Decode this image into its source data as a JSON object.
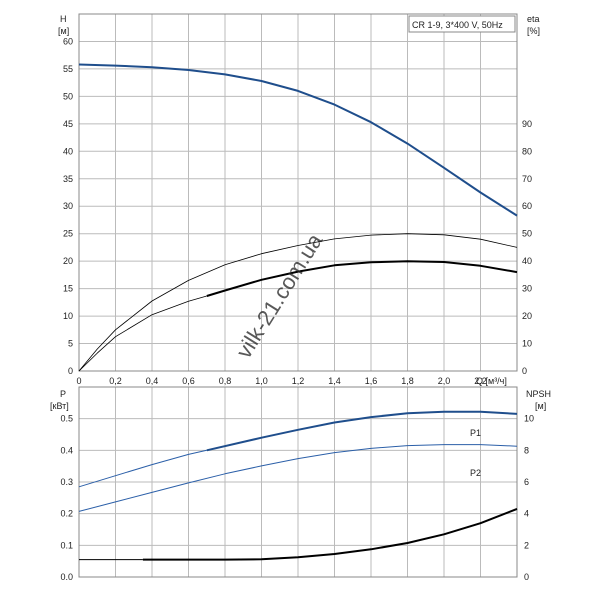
{
  "watermark": "vilk-21.com.ua",
  "colors": {
    "grid": "#bbbbbb",
    "frame": "#888888",
    "head": "#1f4e8c",
    "p1": "#1f4e8c",
    "p2": "#2b5fa8",
    "efficiency": "#000000",
    "npsh": "#000000"
  },
  "chart_data": [
    {
      "type": "line",
      "title": "CR 1-9, 3*400 V, 50Hz",
      "xlabel": "Q [м³/ч]",
      "ylabel_left": "H\n[м]",
      "ylabel_right": "eta\n[%]",
      "xlim": [
        0,
        2.4
      ],
      "ylim": [
        0,
        65
      ],
      "ylim_right": [
        0,
        130
      ],
      "grid": true,
      "x_ticks": [
        "0",
        "0,2",
        "0,4",
        "0,6",
        "0,8",
        "1,0",
        "1,2",
        "1,4",
        "1,6",
        "1,8",
        "2,0",
        "2,2"
      ],
      "y_ticks": [
        "0",
        "5",
        "10",
        "15",
        "20",
        "25",
        "30",
        "35",
        "40",
        "45",
        "50",
        "55",
        "60"
      ],
      "y_ticks_right": [
        "0",
        "10",
        "20",
        "30",
        "40",
        "50",
        "60",
        "70",
        "80",
        "90"
      ],
      "series": [
        {
          "axis": "left",
          "style": "head",
          "x": [
            0,
            0.2,
            0.4,
            0.6,
            0.8,
            1.0,
            1.2,
            1.4,
            1.6,
            1.8,
            2.0,
            2.2,
            2.4
          ],
          "y": [
            55.8,
            55.6,
            55.3,
            54.8,
            54.0,
            52.8,
            51.0,
            48.5,
            45.3,
            41.4,
            37.0,
            32.5,
            28.3
          ]
        },
        {
          "axis": "right",
          "style": "eta_thin",
          "x": [
            0,
            0.1,
            0.2,
            0.4,
            0.6,
            0.8,
            1.0,
            1.2,
            1.4,
            1.6,
            1.8,
            2.0,
            2.2,
            2.4
          ],
          "y": [
            0,
            8,
            15,
            25.5,
            33,
            38.7,
            42.7,
            45.7,
            48.1,
            49.5,
            50.0,
            49.6,
            48.0,
            45.0
          ]
        },
        {
          "axis": "right",
          "style": "eta_thin",
          "x": [
            0,
            0.1,
            0.2,
            0.4,
            0.6,
            0.7
          ],
          "y": [
            0,
            6.5,
            12.5,
            20.5,
            25.4,
            27.3
          ]
        },
        {
          "axis": "right",
          "style": "eta_thick",
          "x": [
            0.7,
            0.8,
            1.0,
            1.2,
            1.4,
            1.6,
            1.8,
            2.0,
            2.2,
            2.4
          ],
          "y": [
            27.3,
            29.3,
            33.2,
            36.2,
            38.5,
            39.6,
            40.0,
            39.7,
            38.3,
            36.0
          ]
        }
      ]
    },
    {
      "type": "line",
      "title": "",
      "xlabel": "",
      "ylabel_left": "P\n[кВт]",
      "ylabel_right": "NPSH\n[м]",
      "xlim": [
        0,
        2.4
      ],
      "ylim": [
        0,
        0.6
      ],
      "ylim_right": [
        0,
        12
      ],
      "grid": true,
      "y_ticks": [
        "0.0",
        "0.1",
        "0.2",
        "0.3",
        "0.4",
        "0.5"
      ],
      "y_ticks_right": [
        "0",
        "2",
        "4",
        "6",
        "8",
        "10"
      ],
      "series": [
        {
          "name": "P1",
          "axis": "left",
          "style": "p_thin",
          "x": [
            0,
            0.2,
            0.4,
            0.6,
            0.7
          ],
          "y": [
            0.285,
            0.32,
            0.355,
            0.387,
            0.4
          ]
        },
        {
          "name": "P1",
          "axis": "left",
          "style": "p_thick",
          "x": [
            0.7,
            1.0,
            1.2,
            1.4,
            1.6,
            1.8,
            2.0,
            2.2,
            2.4
          ],
          "y": [
            0.4,
            0.44,
            0.465,
            0.488,
            0.505,
            0.517,
            0.522,
            0.522,
            0.515
          ]
        },
        {
          "name": "P2",
          "axis": "left",
          "style": "p_thin",
          "x": [
            0,
            0.2,
            0.4,
            0.6,
            0.8,
            1.0,
            1.2,
            1.4,
            1.6,
            1.8,
            2.0,
            2.2,
            2.4
          ],
          "y": [
            0.207,
            0.237,
            0.267,
            0.297,
            0.326,
            0.351,
            0.374,
            0.393,
            0.406,
            0.415,
            0.418,
            0.418,
            0.413
          ]
        },
        {
          "axis": "right",
          "style": "npsh_thin",
          "x": [
            0,
            0.35
          ],
          "y": [
            1.1,
            1.1
          ]
        },
        {
          "axis": "right",
          "style": "npsh_thick",
          "x": [
            0.35,
            0.6,
            0.8,
            1.0,
            1.2,
            1.4,
            1.6,
            1.8,
            2.0,
            2.2,
            2.4
          ],
          "y": [
            1.1,
            1.1,
            1.1,
            1.12,
            1.25,
            1.45,
            1.75,
            2.15,
            2.7,
            3.4,
            4.3
          ]
        }
      ]
    }
  ]
}
